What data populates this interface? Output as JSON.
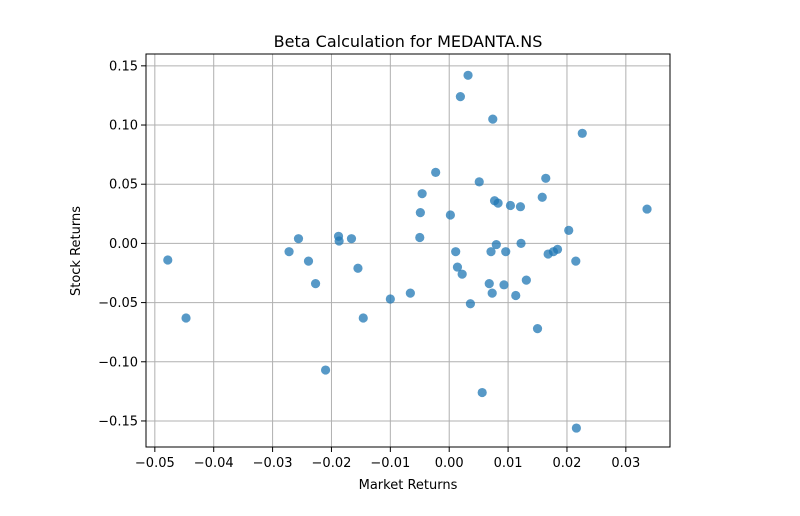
{
  "chart_data": {
    "type": "scatter",
    "title": "Beta Calculation for MEDANTA.NS",
    "xlabel": "Market Returns",
    "ylabel": "Stock Returns",
    "xlim": [
      -0.0515,
      0.0375
    ],
    "ylim": [
      -0.172,
      0.16
    ],
    "xticks": [
      -0.05,
      -0.04,
      -0.03,
      -0.02,
      -0.01,
      0.0,
      0.01,
      0.02,
      0.03
    ],
    "xtick_labels": [
      "−0.05",
      "−0.04",
      "−0.03",
      "−0.02",
      "−0.01",
      "0.00",
      "0.01",
      "0.02",
      "0.03"
    ],
    "yticks": [
      -0.15,
      -0.1,
      -0.05,
      0.0,
      0.05,
      0.1,
      0.15
    ],
    "ytick_labels": [
      "−0.15",
      "−0.10",
      "−0.05",
      "0.00",
      "0.05",
      "0.10",
      "0.15"
    ],
    "grid": true,
    "marker_color": "#1f77b4",
    "points": [
      {
        "x": -0.0478,
        "y": -0.014
      },
      {
        "x": -0.0447,
        "y": -0.063
      },
      {
        "x": -0.0272,
        "y": -0.007
      },
      {
        "x": -0.0256,
        "y": 0.004
      },
      {
        "x": -0.0239,
        "y": -0.015
      },
      {
        "x": -0.0227,
        "y": -0.034
      },
      {
        "x": -0.021,
        "y": -0.107
      },
      {
        "x": -0.0188,
        "y": 0.006
      },
      {
        "x": -0.0187,
        "y": 0.002
      },
      {
        "x": -0.0166,
        "y": 0.004
      },
      {
        "x": -0.0155,
        "y": -0.021
      },
      {
        "x": -0.0146,
        "y": -0.063
      },
      {
        "x": -0.01,
        "y": -0.047
      },
      {
        "x": -0.0066,
        "y": -0.042
      },
      {
        "x": -0.005,
        "y": 0.005
      },
      {
        "x": -0.0049,
        "y": 0.026
      },
      {
        "x": -0.0046,
        "y": 0.042
      },
      {
        "x": -0.0023,
        "y": 0.06
      },
      {
        "x": 0.0002,
        "y": 0.024
      },
      {
        "x": 0.0011,
        "y": -0.007
      },
      {
        "x": 0.0014,
        "y": -0.02
      },
      {
        "x": 0.0019,
        "y": 0.124
      },
      {
        "x": 0.0022,
        "y": -0.026
      },
      {
        "x": 0.0032,
        "y": 0.142
      },
      {
        "x": 0.0036,
        "y": -0.051
      },
      {
        "x": 0.0051,
        "y": 0.052
      },
      {
        "x": 0.0056,
        "y": -0.126
      },
      {
        "x": 0.0068,
        "y": -0.034
      },
      {
        "x": 0.0071,
        "y": -0.007
      },
      {
        "x": 0.0073,
        "y": -0.042
      },
      {
        "x": 0.0074,
        "y": 0.105
      },
      {
        "x": 0.0077,
        "y": 0.036
      },
      {
        "x": 0.008,
        "y": -0.001
      },
      {
        "x": 0.0083,
        "y": 0.034
      },
      {
        "x": 0.0093,
        "y": -0.035
      },
      {
        "x": 0.0096,
        "y": -0.007
      },
      {
        "x": 0.0104,
        "y": 0.032
      },
      {
        "x": 0.0113,
        "y": -0.044
      },
      {
        "x": 0.0121,
        "y": 0.031
      },
      {
        "x": 0.0122,
        "y": 0.0
      },
      {
        "x": 0.0131,
        "y": -0.031
      },
      {
        "x": 0.015,
        "y": -0.072
      },
      {
        "x": 0.0158,
        "y": 0.039
      },
      {
        "x": 0.0164,
        "y": 0.055
      },
      {
        "x": 0.0168,
        "y": -0.009
      },
      {
        "x": 0.0177,
        "y": -0.007
      },
      {
        "x": 0.0184,
        "y": -0.005
      },
      {
        "x": 0.0203,
        "y": 0.011
      },
      {
        "x": 0.0215,
        "y": -0.015
      },
      {
        "x": 0.0216,
        "y": -0.156
      },
      {
        "x": 0.0226,
        "y": 0.093
      },
      {
        "x": 0.0336,
        "y": 0.029
      }
    ]
  }
}
